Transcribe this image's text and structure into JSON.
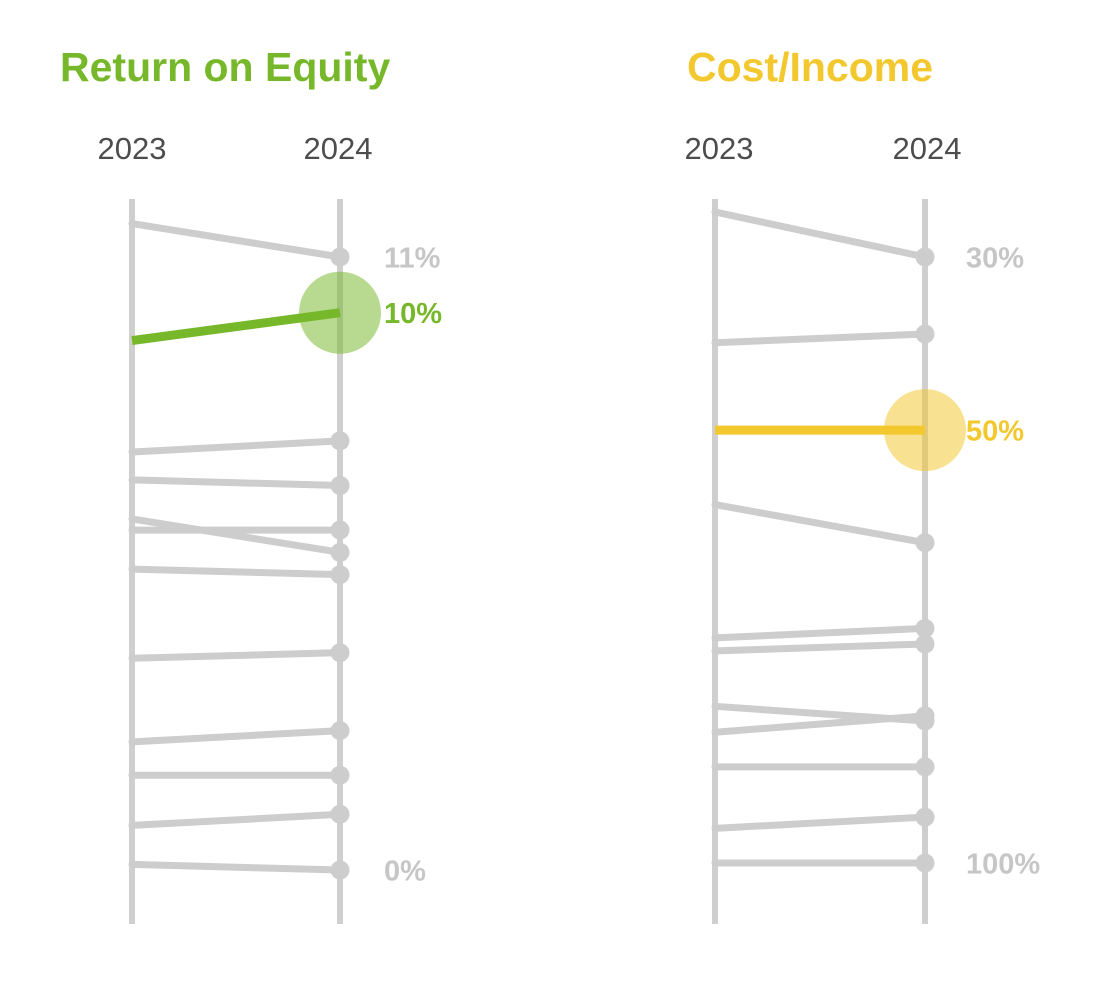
{
  "page": {
    "background": "#ffffff"
  },
  "palette": {
    "slope_gray": "#cdcdcd",
    "axis_gray": "#cfcfcf",
    "label_gray": "#c6c6c6",
    "year_label_color": "#4d4d4d"
  },
  "chart_data": [
    {
      "type": "slope",
      "title": "Return on Equity",
      "accent_color": "#76b82a",
      "unit": "%",
      "categories": [
        "2023",
        "2024"
      ],
      "axis_range_labeled": [
        0,
        11
      ],
      "legend_position": "none",
      "grid": false,
      "highlight": {
        "name": "highlighted-bank",
        "values": [
          9.5,
          10.0
        ],
        "end_label": "10%"
      },
      "peers": [
        {
          "values": [
            11.6,
            11.0
          ],
          "end_label": "11%"
        },
        {
          "values": [
            7.5,
            7.7
          ]
        },
        {
          "values": [
            7.0,
            6.9
          ]
        },
        {
          "values": [
            6.3,
            5.7
          ]
        },
        {
          "values": [
            6.1,
            6.1
          ]
        },
        {
          "values": [
            5.4,
            5.3
          ]
        },
        {
          "values": [
            3.8,
            3.9
          ]
        },
        {
          "values": [
            2.3,
            2.5
          ]
        },
        {
          "values": [
            1.7,
            1.7
          ]
        },
        {
          "values": [
            0.8,
            1.0
          ]
        },
        {
          "values": [
            0.1,
            0.0
          ],
          "end_label": "0%"
        }
      ]
    },
    {
      "type": "slope",
      "title": "Cost/Income",
      "accent_color": "#f2c82e",
      "unit": "%",
      "categories": [
        "2023",
        "2024"
      ],
      "axis_range_labeled": [
        30,
        100
      ],
      "legend_position": "none",
      "grid": false,
      "highlight": {
        "name": "highlighted-bank",
        "values": [
          50.0,
          50.0
        ],
        "end_label": "50%"
      },
      "peers": [
        {
          "values": [
            24.8,
            30.0
          ],
          "end_label": "30%"
        },
        {
          "values": [
            39.9,
            38.9
          ]
        },
        {
          "values": [
            58.6,
            63.0
          ]
        },
        {
          "values": [
            74.0,
            72.9
          ]
        },
        {
          "values": [
            75.5,
            74.7
          ]
        },
        {
          "values": [
            81.9,
            83.6
          ]
        },
        {
          "values": [
            84.9,
            83.0
          ]
        },
        {
          "values": [
            88.9,
            88.9
          ]
        },
        {
          "values": [
            96.0,
            94.7
          ]
        },
        {
          "values": [
            100.0,
            100.0
          ],
          "end_label": "100%"
        }
      ]
    }
  ]
}
